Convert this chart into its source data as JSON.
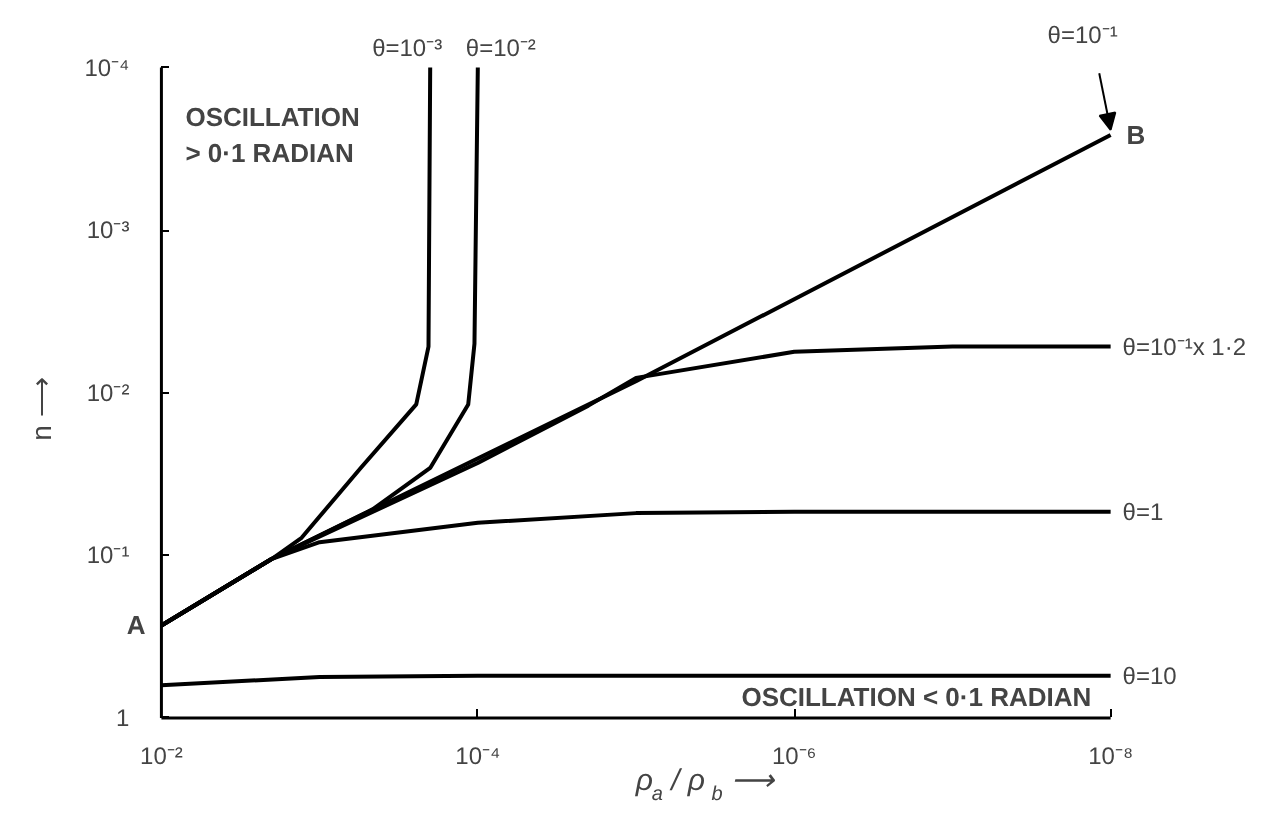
{
  "chart_data": {
    "type": "line",
    "xlabel": "ρ$_{a}$ / ρ$_{b}$ ⟶",
    "ylabel": "n ⟶",
    "log": "xy",
    "grid": false,
    "legend": false,
    "marker": "none",
    "line_style": "solid",
    "xlim": [
      0.01,
      1e-08
    ],
    "ylim": [
      1,
      0.0001
    ],
    "xticks": [
      {
        "value": 0.01,
        "label": "10⁻²"
      },
      {
        "value": 0.0001,
        "label": "10⁻⁴"
      },
      {
        "value": 1e-06,
        "label": "10⁻⁶"
      },
      {
        "value": 1e-08,
        "label": "10⁻⁸"
      }
    ],
    "yticks": [
      1,
      {
        "value": 0.1,
        "label": "10⁻¹"
      },
      {
        "value": 0.01,
        "label": "10⁻²"
      },
      {
        "value": 0.001,
        "label": "10⁻³"
      },
      {
        "value": 0.0001,
        "label": "10⁻⁴"
      }
    ],
    "series": [
      {
        "name": "θ=10⁻³",
        "color": "#000000",
        "x": [
          0.01,
          0.002,
          0.0013,
          0.00055,
          0.000245,
          0.000205,
          0.0002
        ],
        "values": [
          0.27,
          0.105,
          0.078,
          0.029,
          0.0118,
          0.0052,
          0.0001
        ]
      },
      {
        "name": "θ=10⁻²",
        "color": "#000000",
        "x": [
          0.01,
          0.002,
          0.00046,
          0.0002,
          0.000115,
          0.000105,
          0.0001
        ],
        "values": [
          0.27,
          0.105,
          0.052,
          0.029,
          0.0118,
          0.005,
          0.0001
        ]
      },
      {
        "name": "θ=10⁻¹",
        "color": "#000000",
        "x": [
          0.01,
          0.002,
          1e-05,
          1e-08
        ],
        "values": [
          0.27,
          0.105,
          0.0085,
          0.00026
        ]
      },
      {
        "name": "θ=10⁻¹x 1·2",
        "color": "#000000",
        "x": [
          0.01,
          0.002,
          0.0001,
          2e-05,
          1e-05,
          1e-06,
          1e-07,
          1e-08
        ],
        "values": [
          0.27,
          0.105,
          0.027,
          0.012,
          0.0081,
          0.0056,
          0.0052,
          0.0052
        ]
      },
      {
        "name": "θ=1",
        "color": "#000000",
        "x": [
          0.01,
          0.002,
          0.001,
          0.0001,
          1e-05,
          1e-06,
          1e-08
        ],
        "values": [
          0.27,
          0.105,
          0.083,
          0.063,
          0.055,
          0.054,
          0.054
        ]
      },
      {
        "name": "θ=10",
        "color": "#000000",
        "x": [
          0.01,
          0.001,
          0.0001,
          1e-08
        ],
        "values": [
          0.63,
          0.56,
          0.55,
          0.55
        ]
      }
    ],
    "annotations": [
      "OSCILLATION\n> 0·1 RADIAN",
      "OSCILLATION < 0·1 RADIAN",
      {
        "text": "A",
        "x": 0.01,
        "y": 0.27
      },
      {
        "text": "B",
        "x": 1e-08,
        "y": 0.00026
      }
    ]
  }
}
